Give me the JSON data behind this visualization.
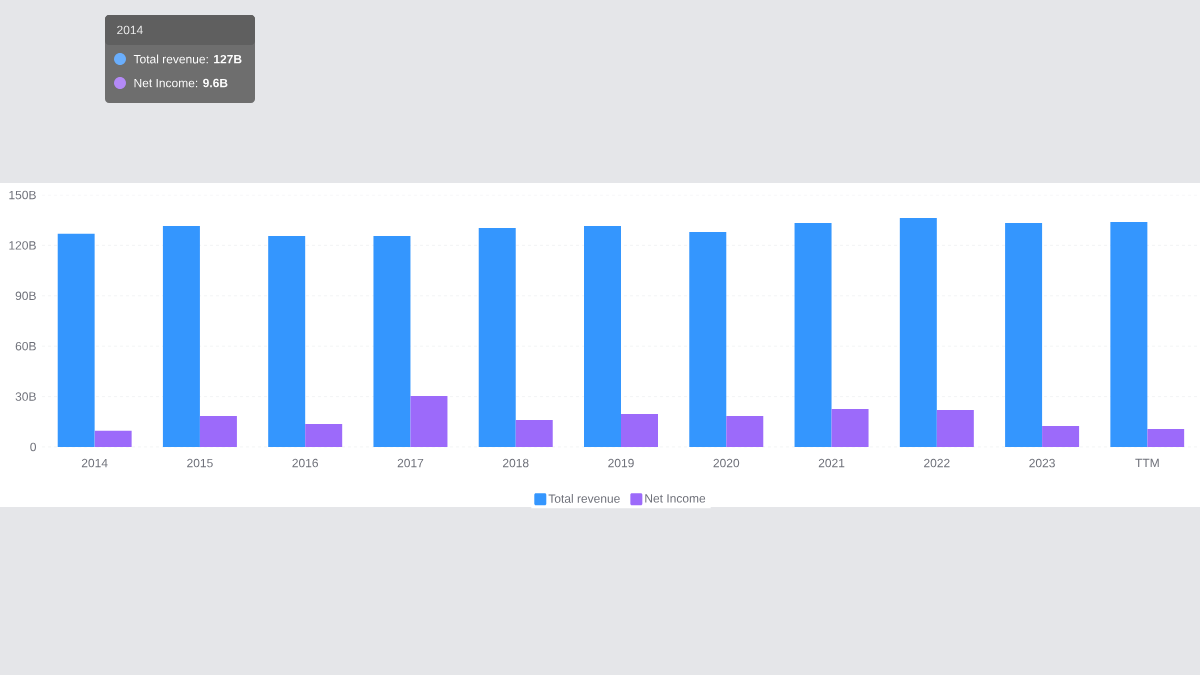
{
  "chart_data": {
    "type": "bar",
    "categories": [
      "2014",
      "2015",
      "2016",
      "2017",
      "2018",
      "2019",
      "2020",
      "2021",
      "2022",
      "2023",
      "TTM"
    ],
    "series": [
      {
        "name": "Total revenue",
        "color": "#3496fe",
        "values": [
          127,
          131.5,
          125.6,
          125.6,
          130.4,
          131.5,
          128,
          133.3,
          136.3,
          133.3,
          134
        ]
      },
      {
        "name": "Net Income",
        "color": "#9c6afa",
        "values": [
          9.6,
          18.5,
          13.7,
          30.4,
          16,
          19.6,
          18.5,
          22.6,
          22,
          12.5,
          10.7
        ]
      }
    ],
    "ylim": [
      0,
      150
    ],
    "yticks": [
      0,
      {
        "value": 30,
        "label": "30B"
      },
      {
        "value": 60,
        "label": "60B"
      },
      {
        "value": 90,
        "label": "90B"
      },
      {
        "value": 120,
        "label": "120B"
      },
      {
        "value": 150,
        "label": "150B"
      }
    ],
    "grid": "y",
    "legend": "bottom",
    "annotations": [
      "2014",
      "Total revenue:  **127B**",
      "Net Income:  **9.6B**"
    ]
  }
}
